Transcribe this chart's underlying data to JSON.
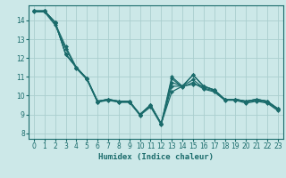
{
  "background_color": "#cce8e8",
  "grid_color": "#aacece",
  "line_color": "#1a6b6b",
  "marker": "D",
  "marker_size": 2.0,
  "linewidth": 0.9,
  "xlabel": "Humidex (Indice chaleur)",
  "xlabel_fontsize": 6.5,
  "xlabel_fontfamily": "monospace",
  "ylim": [
    7.7,
    14.8
  ],
  "xlim": [
    -0.5,
    23.5
  ],
  "yticks": [
    8,
    9,
    10,
    11,
    12,
    13,
    14
  ],
  "xticks": [
    0,
    1,
    2,
    3,
    4,
    5,
    6,
    7,
    8,
    9,
    10,
    11,
    12,
    13,
    14,
    15,
    16,
    17,
    18,
    19,
    20,
    21,
    22,
    23
  ],
  "tick_labelsize": 5.5,
  "series": [
    [
      14.5,
      14.5,
      13.9,
      12.2,
      11.5,
      10.9,
      9.7,
      9.8,
      9.7,
      9.7,
      9.0,
      9.5,
      8.5,
      10.5,
      10.5,
      11.1,
      10.5,
      10.3,
      9.8,
      9.8,
      9.7,
      9.8,
      9.7,
      9.3
    ],
    [
      14.5,
      14.5,
      13.9,
      12.2,
      11.5,
      10.9,
      9.7,
      9.8,
      9.7,
      9.7,
      9.0,
      9.5,
      8.5,
      10.2,
      10.5,
      11.1,
      10.5,
      10.3,
      9.8,
      9.8,
      9.7,
      9.8,
      9.7,
      9.3
    ],
    [
      14.5,
      14.5,
      13.85,
      12.6,
      11.5,
      10.9,
      9.65,
      9.8,
      9.65,
      9.65,
      9.0,
      9.45,
      8.5,
      10.7,
      10.5,
      10.85,
      10.4,
      10.25,
      9.8,
      9.8,
      9.65,
      9.75,
      9.65,
      9.25
    ],
    [
      14.45,
      14.45,
      13.75,
      12.5,
      11.45,
      10.85,
      9.65,
      9.75,
      9.65,
      9.65,
      8.95,
      9.4,
      8.45,
      10.9,
      10.45,
      10.7,
      10.35,
      10.2,
      9.75,
      9.75,
      9.6,
      9.7,
      9.6,
      9.2
    ],
    [
      14.5,
      14.5,
      13.9,
      12.2,
      11.5,
      10.9,
      9.7,
      9.8,
      9.7,
      9.7,
      9.0,
      9.5,
      8.5,
      11.0,
      10.5,
      10.6,
      10.5,
      10.3,
      9.8,
      9.8,
      9.7,
      9.8,
      9.7,
      9.3
    ]
  ]
}
